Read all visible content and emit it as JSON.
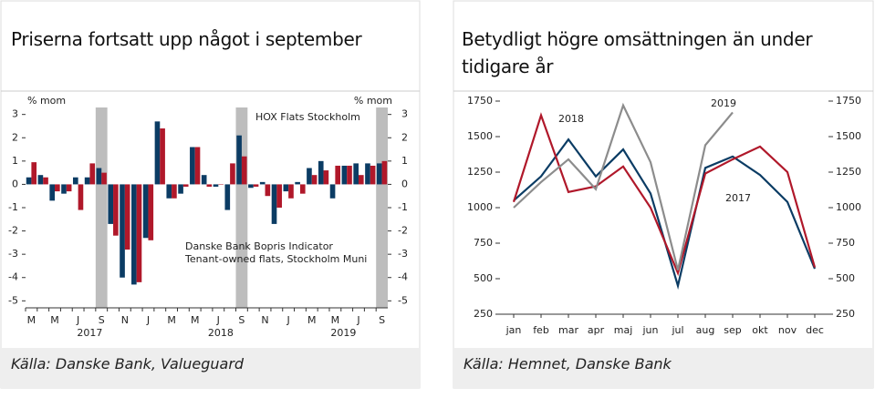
{
  "chart_data": [
    {
      "type": "bar",
      "title": "Priserna fortsatt upp något i september",
      "source": "Källa: Danske Bank, Valueguard",
      "y_axis_label": "% mom",
      "y2_axis_label": "% mom",
      "categories": [
        "M",
        null,
        "M",
        null,
        "J",
        null,
        "S",
        null,
        "N",
        null,
        "J",
        null,
        "M",
        null,
        "M",
        null,
        "J",
        null,
        "S",
        null,
        "N",
        null,
        "J",
        null,
        "M",
        null,
        "M",
        null,
        "J",
        null,
        "S"
      ],
      "x_group_labels": [
        "2017",
        "2018",
        "2019"
      ],
      "series": [
        {
          "name": "Danske Bank Bopris Indicator",
          "subtitle": "Tenant-owned flats, Stockholm Muni",
          "color": "#0b3c64",
          "values": [
            0.3,
            0.4,
            -0.7,
            -0.4,
            0.3,
            0.3,
            0.7,
            -1.7,
            -4.0,
            -4.3,
            -2.3,
            2.7,
            -0.6,
            -0.4,
            1.6,
            0.4,
            -0.1,
            -1.1,
            2.1,
            -0.15,
            0.1,
            -1.7,
            -0.3,
            0.1,
            0.7,
            1.0,
            -0.6,
            0.8,
            0.9,
            0.9,
            0.9
          ]
        },
        {
          "name": "HOX Flats Stockholm",
          "color": "#b0182a",
          "values": [
            0.95,
            0.3,
            -0.3,
            -0.3,
            -1.1,
            0.9,
            0.5,
            -2.2,
            -2.8,
            -4.2,
            -2.4,
            2.4,
            -0.6,
            -0.1,
            1.6,
            -0.1,
            0.0,
            0.9,
            1.2,
            -0.1,
            -0.5,
            -1.0,
            -0.6,
            -0.4,
            0.4,
            0.6,
            0.8,
            0.8,
            0.4,
            0.8,
            1.0
          ]
        }
      ],
      "ylim": [
        -5.3,
        3.3
      ],
      "yticks": [
        -5,
        -4,
        -3,
        -2,
        -1,
        0,
        1,
        2,
        3
      ],
      "y2lim": [
        -5.3,
        3.3
      ],
      "y2ticks": [
        -5,
        -4,
        -3,
        -2,
        -1,
        0,
        1,
        2,
        3
      ]
    },
    {
      "type": "line",
      "title": "Betydligt högre omsättningen än under tidigare år",
      "source": "Källa: Hemnet, Danske Bank",
      "categories": [
        "jan",
        "feb",
        "mar",
        "apr",
        "maj",
        "jun",
        "jul",
        "aug",
        "sep",
        "okt",
        "nov",
        "dec"
      ],
      "series": [
        {
          "name": "2017",
          "color": "#0b3c64",
          "values": [
            1050,
            1220,
            1480,
            1220,
            1410,
            1100,
            450,
            1280,
            1360,
            1230,
            1040,
            570
          ]
        },
        {
          "name": "2018",
          "color": "#b0182a",
          "values": [
            1040,
            1650,
            1110,
            1150,
            1290,
            1000,
            540,
            1240,
            1340,
            1430,
            1250,
            580
          ]
        },
        {
          "name": "2019",
          "color": "#8c8c8c",
          "values": [
            1000,
            1180,
            1340,
            1130,
            1720,
            1320,
            560,
            1440,
            1670,
            null,
            null,
            null
          ]
        }
      ],
      "ylim": [
        250,
        1750
      ],
      "yticks": [
        250,
        500,
        750,
        1000,
        1250,
        1500,
        1750
      ],
      "y2lim": [
        250,
        1750
      ],
      "y2ticks": [
        250,
        500,
        750,
        1000,
        1250,
        1500,
        1750
      ]
    }
  ]
}
